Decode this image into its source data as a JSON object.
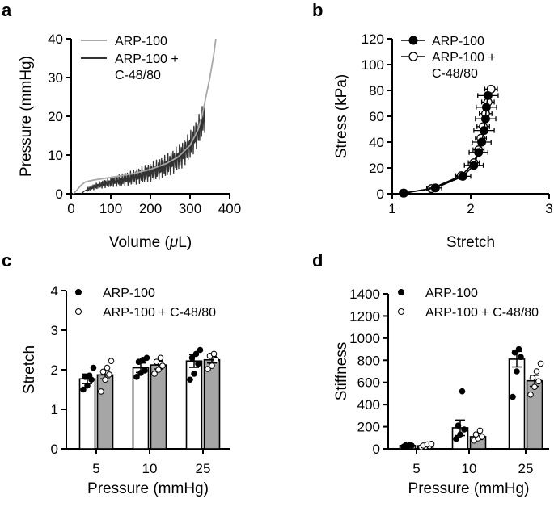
{
  "chart_data": [
    {
      "panel": "a",
      "type": "line",
      "xlabel_prefix": "Volume (",
      "xlabel_mu": "μ",
      "xlabel_suffix": "L)",
      "ylabel": "Pressure (mmHg)",
      "xlim": [
        0,
        400
      ],
      "ylim": [
        0,
        40
      ],
      "xticks": [
        0,
        100,
        200,
        300,
        400
      ],
      "yticks": [
        0,
        10,
        20,
        30,
        40
      ],
      "series": [
        {
          "name": "ARP-100",
          "color": "#a8a8a8",
          "x": [
            5,
            15,
            25,
            35,
            45,
            60,
            80,
            100,
            130,
            160,
            200,
            240,
            270,
            300,
            320,
            330,
            340,
            350,
            360,
            365
          ],
          "y": [
            0,
            1.0,
            2.2,
            3.0,
            3.3,
            3.6,
            3.9,
            4.2,
            4.7,
            5.3,
            6.3,
            7.8,
            9.5,
            12.5,
            16.5,
            20,
            25,
            30,
            36,
            40
          ]
        },
        {
          "name": "ARP-100 +\nC-48/80",
          "name_line1": "ARP-100 +",
          "name_line2": "C-48/80",
          "color": "#333333",
          "x": [
            25,
            35,
            50,
            70,
            90,
            110,
            130,
            160,
            190,
            220,
            250,
            280,
            300,
            320,
            330,
            338
          ],
          "y": [
            0,
            0.8,
            1.5,
            2.2,
            2.7,
            3.2,
            3.6,
            4.3,
            5.2,
            6.3,
            7.8,
            10,
            12.5,
            16,
            18.5,
            20
          ]
        }
      ]
    },
    {
      "panel": "b",
      "type": "line",
      "xlabel": "Stretch",
      "ylabel": "Stress (kPa)",
      "xlim": [
        1,
        3
      ],
      "ylim": [
        0,
        120
      ],
      "xticks": [
        1,
        2,
        3
      ],
      "yticks": [
        0,
        20,
        40,
        60,
        80,
        100,
        120
      ],
      "series": [
        {
          "name": "ARP-100",
          "marker": "filled",
          "x": [
            1.15,
            1.55,
            1.9,
            2.04,
            2.1,
            2.14,
            2.17,
            2.19,
            2.2,
            2.22
          ],
          "y": [
            0.5,
            4.5,
            13.5,
            22,
            32,
            40,
            49,
            58,
            67,
            76
          ],
          "xerr": [
            0.03,
            0.08,
            0.1,
            0.12,
            0.12,
            0.12,
            0.13,
            0.13,
            0.13,
            0.13
          ],
          "yerr": [
            0.5,
            1.0,
            1.5,
            2,
            3,
            3,
            3,
            3,
            3,
            3
          ]
        },
        {
          "name": "ARP-100 +\nC-48/80",
          "name_line1": "ARP-100 +",
          "name_line2": "C-48/80",
          "marker": "open",
          "x": [
            1.14,
            1.5,
            1.88,
            2.04,
            2.1,
            2.13,
            2.16,
            2.19,
            2.22,
            2.26
          ],
          "y": [
            0.5,
            4,
            14,
            24,
            34,
            43,
            52,
            62,
            71,
            81
          ],
          "xerr": [
            0.03,
            0.06,
            0.07,
            0.07,
            0.07,
            0.07,
            0.08,
            0.08,
            0.08,
            0.08
          ],
          "yerr": [
            0.5,
            1.0,
            1.5,
            2,
            2,
            3,
            3,
            3,
            3,
            3
          ]
        }
      ]
    },
    {
      "panel": "c",
      "type": "bar",
      "xlabel": "Pressure (mmHg)",
      "ylabel": "Stretch",
      "ylim": [
        0,
        4
      ],
      "yticks": [
        0,
        1,
        2,
        3,
        4
      ],
      "categories": [
        "5",
        "10",
        "25"
      ],
      "series": [
        {
          "name": "ARP-100",
          "fill": "#ffffff",
          "marker": "filled",
          "values": [
            1.77,
            2.05,
            2.22
          ],
          "err": [
            0.12,
            0.12,
            0.16
          ],
          "points": [
            [
              1.5,
              1.6,
              1.75,
              1.82,
              1.85,
              2.05
            ],
            [
              1.82,
              1.92,
              1.98,
              2.2,
              2.25,
              2.3
            ],
            [
              1.75,
              1.9,
              2.15,
              2.3,
              2.4,
              2.5
            ]
          ]
        },
        {
          "name": "ARP-100 + C-48/80",
          "fill": "#a6a6a6",
          "marker": "open",
          "values": [
            1.87,
            2.12,
            2.25
          ],
          "err": [
            0.1,
            0.1,
            0.08
          ],
          "points": [
            [
              1.45,
              1.75,
              1.88,
              1.95,
              2.05,
              2.22
            ],
            [
              1.9,
              2.0,
              2.1,
              2.2,
              2.3
            ],
            [
              2.02,
              2.1,
              2.25,
              2.35,
              2.4
            ]
          ]
        }
      ]
    },
    {
      "panel": "d",
      "type": "bar",
      "xlabel": "Pressure (mmHg)",
      "ylabel": "Stiffness",
      "ylim": [
        0,
        1400
      ],
      "yticks": [
        0,
        200,
        400,
        600,
        800,
        1000,
        1200,
        1400
      ],
      "categories": [
        "5",
        "10",
        "25"
      ],
      "series": [
        {
          "name": "ARP-100",
          "fill": "#ffffff",
          "marker": "filled",
          "values": [
            30,
            190,
            810
          ],
          "err": [
            8,
            70,
            70
          ],
          "points": [
            [
              20,
              25,
              30,
              32,
              35
            ],
            [
              90,
              130,
              175,
              210,
              520
            ],
            [
              470,
              700,
              830,
              870,
              900
            ]
          ]
        },
        {
          "name": "ARP-100 + C-48/80",
          "fill": "#a6a6a6",
          "marker": "open",
          "values": [
            28,
            110,
            615
          ],
          "err": [
            6,
            25,
            50
          ],
          "points": [
            [
              15,
              20,
              25,
              30,
              40,
              45
            ],
            [
              75,
              95,
              110,
              130,
              165
            ],
            [
              490,
              560,
              610,
              640,
              700,
              770
            ]
          ]
        }
      ]
    }
  ]
}
